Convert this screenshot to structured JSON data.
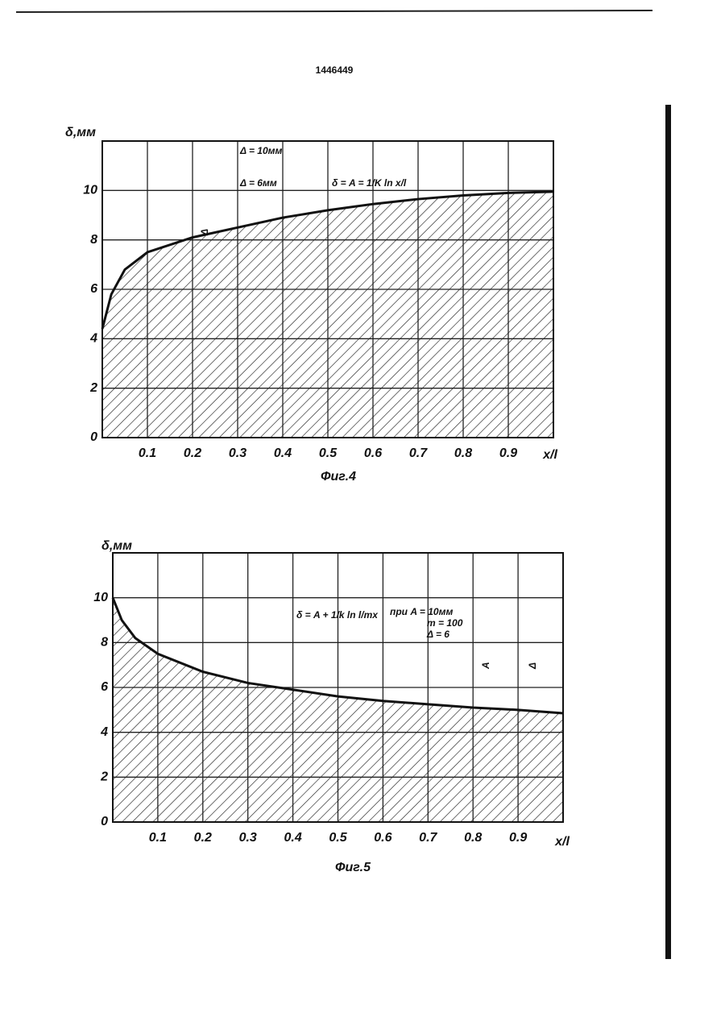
{
  "page_number": "1446449",
  "chart_data": [
    {
      "type": "area",
      "caption": "Фиг.4",
      "y_label": "δ,мм",
      "x_label": "x/l",
      "annotations": [
        "Δ = 10мм",
        "Δ = 6мм",
        "δ = A = 1/K ln x/l",
        "Δ"
      ],
      "x": [
        0,
        0.02,
        0.05,
        0.1,
        0.2,
        0.3,
        0.4,
        0.5,
        0.6,
        0.7,
        0.8,
        0.9,
        1.0
      ],
      "values": [
        4.4,
        5.8,
        6.8,
        7.5,
        8.1,
        8.5,
        8.9,
        9.2,
        9.45,
        9.65,
        9.8,
        9.9,
        9.95
      ],
      "color": "#111111",
      "xlim": [
        0,
        1
      ],
      "ylim": [
        0,
        12
      ],
      "xticks": [
        0.1,
        0.2,
        0.3,
        0.4,
        0.5,
        0.6,
        0.7,
        0.8,
        0.9
      ],
      "yticks": [
        0,
        2,
        4,
        6,
        8,
        10
      ],
      "grid": true
    },
    {
      "type": "area",
      "caption": "Фиг.5",
      "y_label": "δ,мм",
      "x_label": "x/l",
      "annotations": [
        "δ = A + 1/k ln l/mx",
        "при A = 10мм",
        "m = 100",
        "Δ = 6",
        "A",
        "Δ"
      ],
      "x": [
        0,
        0.02,
        0.05,
        0.1,
        0.2,
        0.3,
        0.4,
        0.5,
        0.6,
        0.7,
        0.8,
        0.9,
        1.0
      ],
      "values": [
        10,
        9.0,
        8.2,
        7.5,
        6.7,
        6.2,
        5.9,
        5.6,
        5.4,
        5.25,
        5.1,
        5.0,
        4.85
      ],
      "color": "#111111",
      "xlim": [
        0,
        1
      ],
      "ylim": [
        0,
        12
      ],
      "xticks": [
        0.1,
        0.2,
        0.3,
        0.4,
        0.5,
        0.6,
        0.7,
        0.8,
        0.9
      ],
      "yticks": [
        0,
        2,
        4,
        6,
        8,
        10
      ],
      "grid": true
    }
  ]
}
